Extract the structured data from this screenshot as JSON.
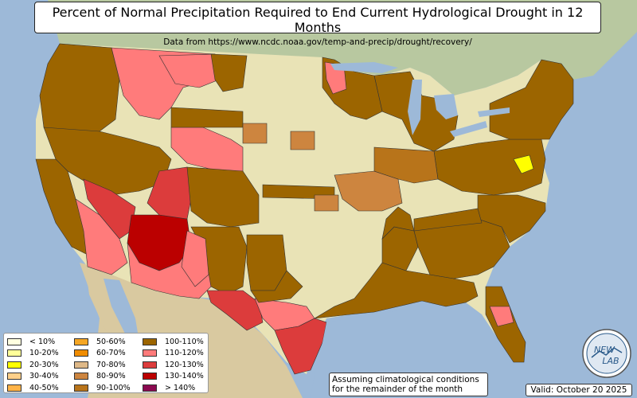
{
  "title": {
    "main": "Percent of Normal Precipitation Required to End Current Hydrological Drought in 12 Months",
    "sub": "Data from https://www.ncdc.noaa.gov/temp-and-precip/drought/recovery/"
  },
  "legend": [
    {
      "label": "< 10%",
      "color": "#ffffe0"
    },
    {
      "label": "10-20%",
      "color": "#ffff99"
    },
    {
      "label": "20-30%",
      "color": "#ffff00"
    },
    {
      "label": "30-40%",
      "color": "#ffd08a"
    },
    {
      "label": "40-50%",
      "color": "#ffb347"
    },
    {
      "label": "50-60%",
      "color": "#f5a623"
    },
    {
      "label": "60-70%",
      "color": "#f08c00"
    },
    {
      "label": "70-80%",
      "color": "#deb887"
    },
    {
      "label": "80-90%",
      "color": "#cd853f"
    },
    {
      "label": "90-100%",
      "color": "#b8741a"
    },
    {
      "label": "100-110%",
      "color": "#9c6500"
    },
    {
      "label": "110-120%",
      "color": "#ff7b7b"
    },
    {
      "label": "120-130%",
      "color": "#dc3c3c"
    },
    {
      "label": "130-140%",
      "color": "#bb0000"
    },
    {
      "label": "> 140%",
      "color": "#8b0a50"
    }
  ],
  "note": {
    "line1": "Assuming climatological conditions",
    "line2": "for the remainder of the month"
  },
  "valid": "Valid: October 20 2025",
  "logo": {
    "text_top": "NEW",
    "text_bottom": "LAB"
  }
}
